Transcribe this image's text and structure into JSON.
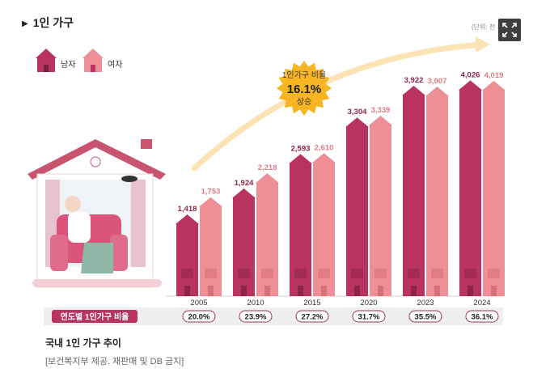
{
  "header": {
    "title": "1인 가구",
    "unit": "(단위: 천 가구)"
  },
  "legend": [
    {
      "label": "남자",
      "color": "#b8335f"
    },
    {
      "label": "여자",
      "color": "#ee8f97"
    }
  ],
  "callout": {
    "line1": "1인가구 비율",
    "value": "16.1%",
    "line3": "상승"
  },
  "ratio_label": "연도별 1인가구 비율",
  "caption": "국내 1인 가구 추이",
  "source": "[보건복지부 제공. 재판매 및 DB 금지]",
  "chart_data": {
    "type": "bar",
    "categories": [
      "2005",
      "2010",
      "2015",
      "2020",
      "2023",
      "2024"
    ],
    "series": [
      {
        "name": "남자",
        "values": [
          1418,
          1924,
          2593,
          3304,
          3922,
          4026
        ],
        "labels": [
          "1,418",
          "1,924",
          "2,593",
          "3,304",
          "3,922",
          "4,026"
        ]
      },
      {
        "name": "여자",
        "values": [
          1753,
          2218,
          2610,
          3339,
          3907,
          4019
        ],
        "labels": [
          "1,753",
          "2,218",
          "2,610",
          "3,339",
          "3,907",
          "4,019"
        ]
      }
    ],
    "ratios": [
      "20.0%",
      "23.9%",
      "27.2%",
      "31.7%",
      "35.5%",
      "36.1%"
    ],
    "ylim": [
      0,
      4300
    ]
  }
}
